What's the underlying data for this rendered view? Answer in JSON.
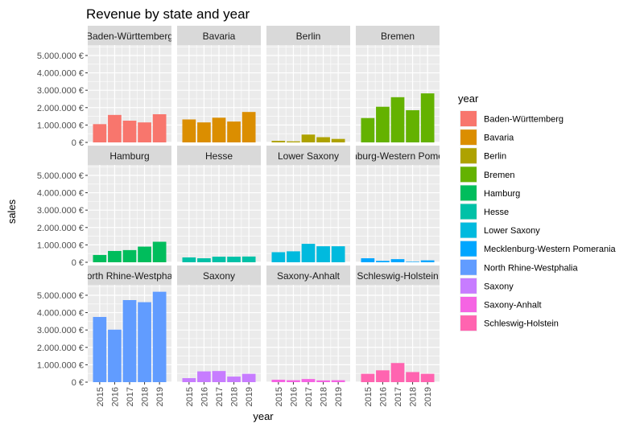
{
  "chart_data": {
    "type": "bar",
    "title": "Revenue by state and year",
    "xlabel": "year",
    "ylabel": "sales",
    "ylim": [
      0,
      5600000
    ],
    "y_ticks": [
      0,
      1000000,
      2000000,
      3000000,
      4000000,
      5000000
    ],
    "y_tick_labels": [
      "0 €",
      "1.000.000 €",
      "2.000.000 €",
      "3.000.000 €",
      "4.000.000 €",
      "5.000.000 €"
    ],
    "categories": [
      "2015",
      "2016",
      "2017",
      "2018",
      "2019"
    ],
    "legend_title": "year",
    "legend_position": "right",
    "grid": true,
    "facets": [
      {
        "name": "Baden-Württemberg",
        "strip_label": "Baden-Württemberg",
        "color": "#F8766D",
        "values": [
          1050000,
          1580000,
          1250000,
          1150000,
          1620000
        ]
      },
      {
        "name": "Bavaria",
        "strip_label": "Bavaria",
        "color": "#DB8E00",
        "values": [
          1320000,
          1150000,
          1420000,
          1200000,
          1750000
        ]
      },
      {
        "name": "Berlin",
        "strip_label": "Berlin",
        "color": "#AEA200",
        "values": [
          90000,
          60000,
          450000,
          300000,
          200000
        ]
      },
      {
        "name": "Bremen",
        "strip_label": "Bremen",
        "color": "#64B200",
        "values": [
          1400000,
          2050000,
          2600000,
          1850000,
          2820000
        ]
      },
      {
        "name": "Hamburg",
        "strip_label": "Hamburg",
        "color": "#00BD5C",
        "values": [
          420000,
          650000,
          700000,
          900000,
          1180000
        ]
      },
      {
        "name": "Hesse",
        "strip_label": "Hesse",
        "color": "#00C1A7",
        "values": [
          280000,
          230000,
          320000,
          320000,
          330000
        ]
      },
      {
        "name": "Lower Saxony",
        "strip_label": "Lower Saxony",
        "color": "#00BADE",
        "values": [
          580000,
          630000,
          1060000,
          920000,
          920000
        ]
      },
      {
        "name": "Mecklenburg-Western Pomerania",
        "strip_label": "nburg-Western Pome",
        "color": "#00A6FF",
        "values": [
          230000,
          80000,
          180000,
          30000,
          110000
        ]
      },
      {
        "name": "North Rhine-Westphalia",
        "strip_label": "orth Rhine-Westpha",
        "color": "#619CFF",
        "values": [
          3750000,
          3020000,
          4720000,
          4600000,
          5200000
        ]
      },
      {
        "name": "Saxony",
        "strip_label": "Saxony",
        "color": "#C77CFF",
        "values": [
          230000,
          620000,
          640000,
          320000,
          480000
        ]
      },
      {
        "name": "Saxony-Anhalt",
        "strip_label": "Saxony-Anhalt",
        "color": "#F564E3",
        "values": [
          140000,
          110000,
          180000,
          100000,
          110000
        ]
      },
      {
        "name": "Schleswig-Holstein",
        "strip_label": "Schleswig-Holstein",
        "color": "#FF64B0",
        "values": [
          480000,
          680000,
          1100000,
          580000,
          480000
        ]
      }
    ]
  }
}
